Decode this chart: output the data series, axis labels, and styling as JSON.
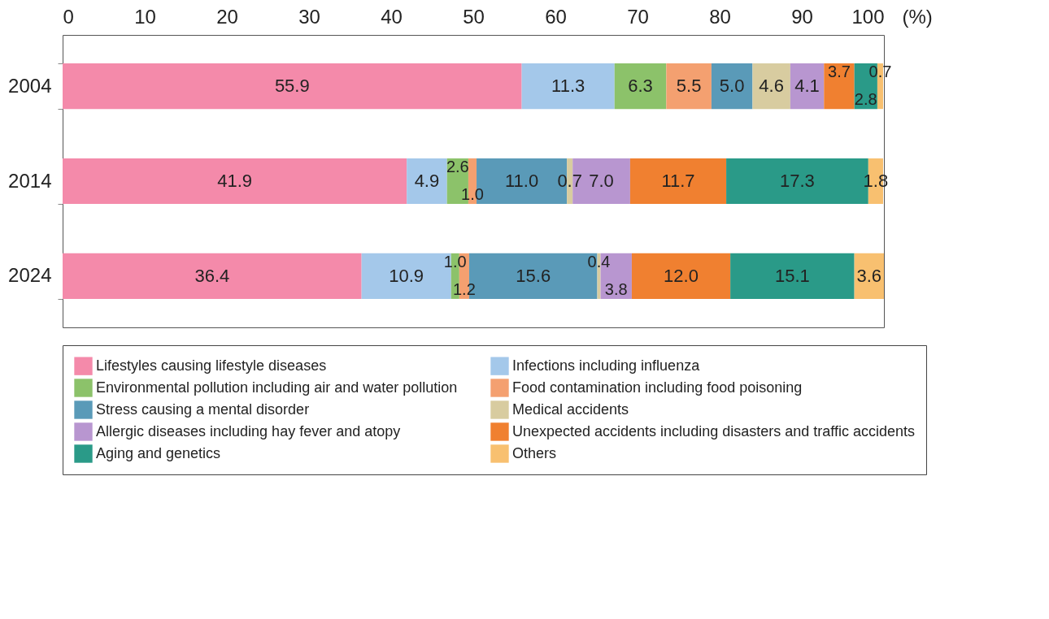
{
  "chart_data": {
    "type": "bar",
    "orientation": "horizontal",
    "stacked": true,
    "xlabel": "(%)",
    "categories": [
      "2004",
      "2014",
      "2024"
    ],
    "xlim": [
      0,
      100
    ],
    "xticks": [
      0,
      10,
      20,
      30,
      40,
      50,
      60,
      70,
      80,
      90,
      100
    ],
    "legend": "bottom",
    "grid": false,
    "series": [
      {
        "name": "Lifestyles causing lifestyle diseases",
        "color": "#f48aaa",
        "values": [
          55.9,
          41.9,
          36.4
        ],
        "value_labels": [
          "55.9",
          "41.9",
          "36.4"
        ]
      },
      {
        "name": "Infections including influenza",
        "color": "#a4c8ea",
        "values": [
          11.3,
          4.9,
          10.9
        ],
        "value_labels": [
          "11.3",
          "4.9",
          "10.9"
        ]
      },
      {
        "name": "Environmental pollution including air and water pollution",
        "color": "#8cc26a",
        "values": [
          6.3,
          2.6,
          1.0
        ],
        "value_labels": [
          "6.3",
          "2.6",
          "1.0"
        ]
      },
      {
        "name": "Food contamination including food poisoning",
        "color": "#f4a070",
        "values": [
          5.5,
          1.0,
          1.2
        ],
        "value_labels": [
          "5.5",
          "1.0",
          "1.2"
        ]
      },
      {
        "name": "Stress causing a mental disorder",
        "color": "#5a9ab8",
        "values": [
          5.0,
          11.0,
          15.6
        ],
        "value_labels": [
          "5.0",
          "11.0",
          "15.6"
        ]
      },
      {
        "name": "Medical accidents",
        "color": "#d8cca0",
        "values": [
          4.6,
          0.7,
          0.4
        ],
        "value_labels": [
          "4.6",
          "0.7",
          "0.4"
        ]
      },
      {
        "name": "Allergic diseases including hay fever and atopy",
        "color": "#b896d0",
        "values": [
          4.1,
          7.0,
          3.8
        ],
        "value_labels": [
          "4.1",
          "7.0",
          "3.8"
        ]
      },
      {
        "name": "Unexpected accidents including disasters and traffic accidents",
        "color": "#f08030",
        "values": [
          3.7,
          11.7,
          12.0
        ],
        "value_labels": [
          "3.7",
          "11.7",
          "12.0"
        ]
      },
      {
        "name": "Aging and genetics",
        "color": "#2a9a88",
        "values": [
          2.8,
          17.3,
          15.1
        ],
        "value_labels": [
          "2.8",
          "17.3",
          "15.1"
        ]
      },
      {
        "name": "Others",
        "color": "#f8c070",
        "values": [
          0.7,
          1.8,
          3.6
        ],
        "value_labels": [
          "0.7",
          "1.8",
          "3.6"
        ]
      }
    ]
  }
}
